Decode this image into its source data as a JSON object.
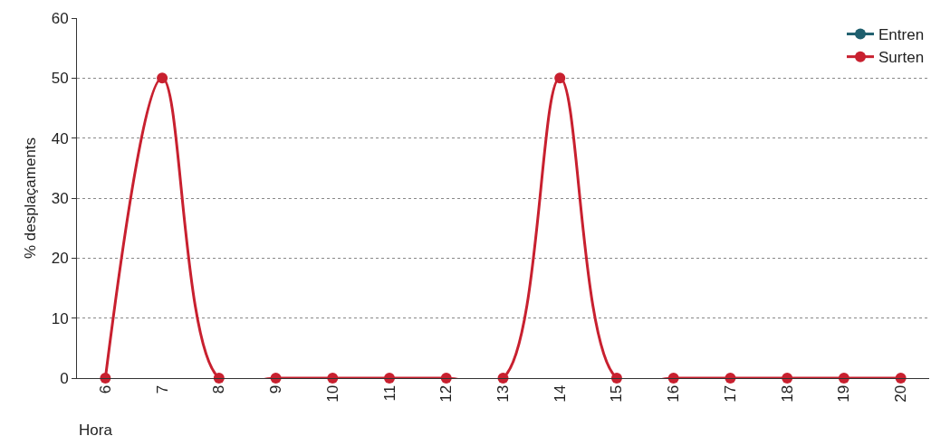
{
  "chart_data": {
    "type": "line",
    "xlabel": "Hora",
    "ylabel": "% desplaçaments",
    "categories": [
      "6",
      "7",
      "8",
      "9",
      "10",
      "11",
      "12",
      "13",
      "14",
      "15",
      "16",
      "17",
      "18",
      "19",
      "20"
    ],
    "series": [
      {
        "name": "Entren",
        "color": "#1f5f6e",
        "values": [
          null,
          null,
          null,
          null,
          null,
          null,
          null,
          null,
          null,
          null,
          null,
          null,
          null,
          null,
          null
        ]
      },
      {
        "name": "Surten",
        "color": "#c8202f",
        "values": [
          0,
          50,
          0,
          0,
          0,
          0,
          0,
          0,
          50,
          0,
          0,
          0,
          0,
          0,
          0
        ]
      }
    ],
    "ylim": [
      0,
      60
    ],
    "yticks": [
      0,
      10,
      20,
      30,
      40,
      50,
      60
    ],
    "grid": "y",
    "legend": "top right",
    "marker": "circle",
    "line_style": "solid"
  }
}
